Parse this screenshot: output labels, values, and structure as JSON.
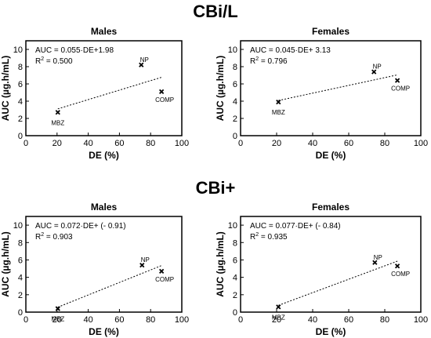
{
  "figure": {
    "sections": [
      {
        "title": "CBi/L"
      },
      {
        "title": "CBi+"
      }
    ]
  },
  "chart_data": [
    {
      "type": "scatter",
      "section": "CBi/L",
      "title": "Males",
      "xlabel": "DE (%)",
      "ylabel": "AUC (µg.h/mL)",
      "xlim": [
        0,
        100
      ],
      "ylim": [
        0,
        11
      ],
      "xticks": [
        "0",
        "20",
        "40",
        "60",
        "80",
        "100"
      ],
      "yticks": [
        "0",
        "2",
        "4",
        "6",
        "8",
        "10"
      ],
      "equation": "AUC  = 0.055·DE+1.98",
      "r2_label": "R",
      "r2_value": "= 0.500",
      "points": [
        {
          "label": "MBZ",
          "x": 20.5,
          "y": 2.7
        },
        {
          "label": "NP",
          "x": 74.0,
          "y": 8.2
        },
        {
          "label": "COMP",
          "x": 87.0,
          "y": 5.1
        }
      ],
      "trendline": {
        "slope": 0.055,
        "intercept": 1.98,
        "x_range": [
          20.5,
          87.0
        ]
      }
    },
    {
      "type": "scatter",
      "section": "CBi/L",
      "title": "Females",
      "xlabel": "DE (%)",
      "ylabel": "AUC (µg.h/mL)",
      "xlim": [
        0,
        100
      ],
      "ylim": [
        0,
        11
      ],
      "xticks": [
        "0",
        "20",
        "40",
        "60",
        "80",
        "100"
      ],
      "yticks": [
        "0",
        "2",
        "4",
        "6",
        "8",
        "10"
      ],
      "equation": "AUC  = 0.045·DE+ 3.13",
      "r2_label": "R",
      "r2_value": "= 0.796",
      "points": [
        {
          "label": "MBZ",
          "x": 21.0,
          "y": 3.9
        },
        {
          "label": "NP",
          "x": 74.0,
          "y": 7.4
        },
        {
          "label": "COMP",
          "x": 87.0,
          "y": 6.4
        }
      ],
      "trendline": {
        "slope": 0.045,
        "intercept": 3.13,
        "x_range": [
          21.0,
          87.0
        ]
      }
    },
    {
      "type": "scatter",
      "section": "CBi+",
      "title": "Males",
      "xlabel": "DE (%)",
      "ylabel": "AUC (µg.h/mL)",
      "xlim": [
        0,
        100
      ],
      "ylim": [
        0,
        11
      ],
      "xticks": [
        "0",
        "20",
        "40",
        "60",
        "80",
        "100"
      ],
      "yticks": [
        "0",
        "2",
        "4",
        "6",
        "8",
        "10"
      ],
      "equation": "AUC  = 0.072·DE+ (- 0.91)",
      "r2_label": "R",
      "r2_value": "= 0.903",
      "points": [
        {
          "label": "MBZ",
          "x": 20.5,
          "y": 0.4
        },
        {
          "label": "NP",
          "x": 74.5,
          "y": 5.4
        },
        {
          "label": "COMP",
          "x": 87.0,
          "y": 4.7
        }
      ],
      "trendline": {
        "slope": 0.072,
        "intercept": -0.91,
        "x_range": [
          20.5,
          87.0
        ]
      }
    },
    {
      "type": "scatter",
      "section": "CBi+",
      "title": "Females",
      "xlabel": "DE (%)",
      "ylabel": "AUC (µg.h/mL)",
      "xlim": [
        0,
        100
      ],
      "ylim": [
        0,
        11
      ],
      "xticks": [
        "0",
        "20",
        "40",
        "60",
        "80",
        "100"
      ],
      "yticks": [
        "0",
        "2",
        "4",
        "6",
        "8",
        "10"
      ],
      "equation": "AUC  = 0.077·DE+ (- 0.84)",
      "r2_label": "R",
      "r2_value": "= 0.935",
      "points": [
        {
          "label": "MBZ",
          "x": 21.0,
          "y": 0.6
        },
        {
          "label": "NP",
          "x": 74.5,
          "y": 5.7
        },
        {
          "label": "COMP",
          "x": 87.0,
          "y": 5.3
        }
      ],
      "trendline": {
        "slope": 0.077,
        "intercept": -0.84,
        "x_range": [
          21.0,
          87.0
        ]
      }
    }
  ]
}
